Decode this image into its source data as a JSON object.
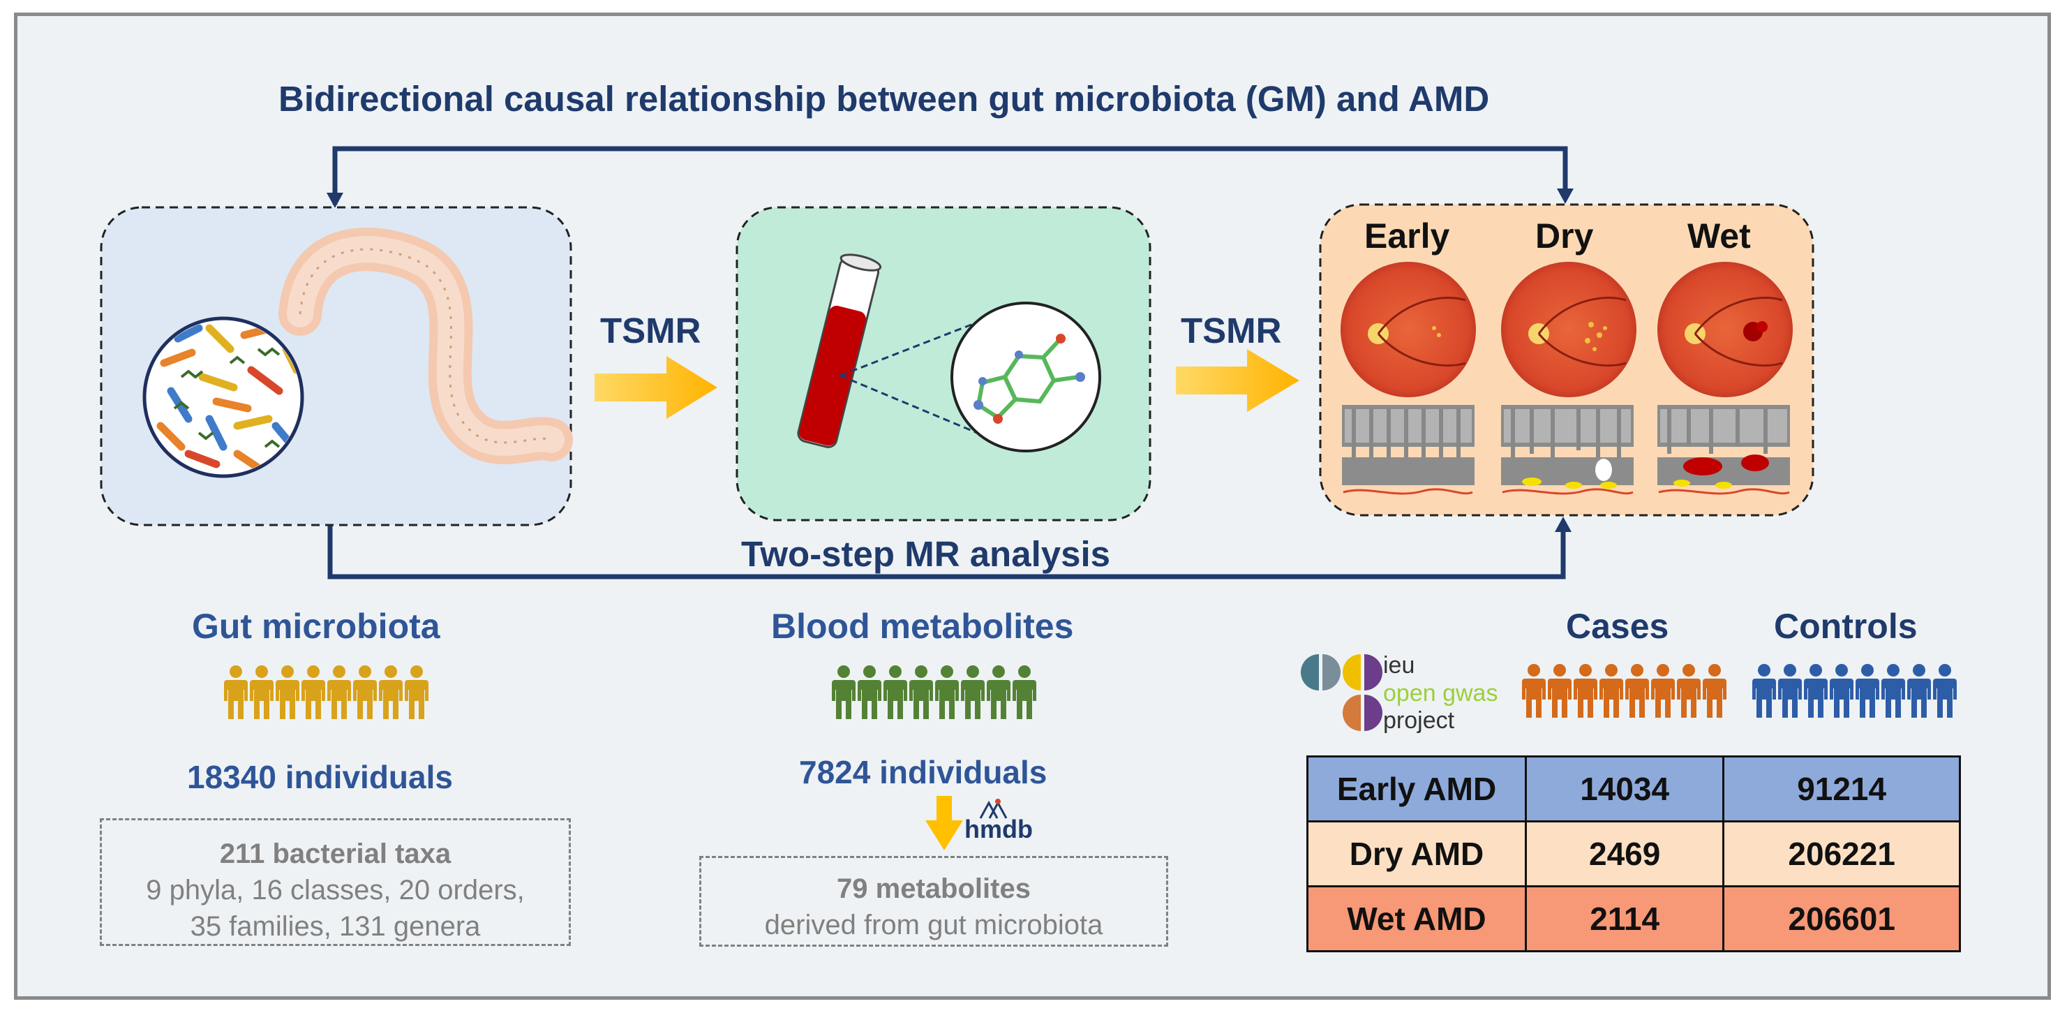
{
  "title": "Bidirectional causal relationship between gut microbiota (GM) and AMD",
  "arrows": {
    "left_label": "TSMR",
    "right_label": "TSMR",
    "bottom_label": "Two-step MR analysis"
  },
  "amd_stages": [
    "Early",
    "Dry",
    "Wet"
  ],
  "gut": {
    "heading": "Gut microbiota",
    "count": "18340 individuals",
    "box_title": "211 bacterial taxa",
    "box_line1": "9 phyla, 16 classes, 20 orders,",
    "box_line2": "35 families, 131 genera"
  },
  "blood": {
    "heading": "Blood metabolites",
    "count": "7824 individuals",
    "db_logo": "hmdb",
    "box_title": "79 metabolites",
    "box_line1": "derived from gut microbiota"
  },
  "gwas_logo": {
    "line1": "ieu",
    "line2": "open gwas",
    "line3": "project"
  },
  "table": {
    "headers": [
      "Cases",
      "Controls"
    ],
    "rows": [
      {
        "label": "Early AMD",
        "cases": "14034",
        "controls": "91214"
      },
      {
        "label": "Dry AMD",
        "cases": "2469",
        "controls": "206221"
      },
      {
        "label": "Wet AMD",
        "cases": "2114",
        "controls": "206601"
      }
    ]
  },
  "colors": {
    "navy": "#1f3a6b",
    "gut_people": "#d9a21b",
    "blood_people": "#548235",
    "cases_people": "#d46a1a",
    "controls_people": "#2e5da8",
    "early_row": "#8eaadb",
    "dry_row": "#fde0c3",
    "wet_row": "#f79877",
    "arrow_yellow": "#ffc000"
  }
}
